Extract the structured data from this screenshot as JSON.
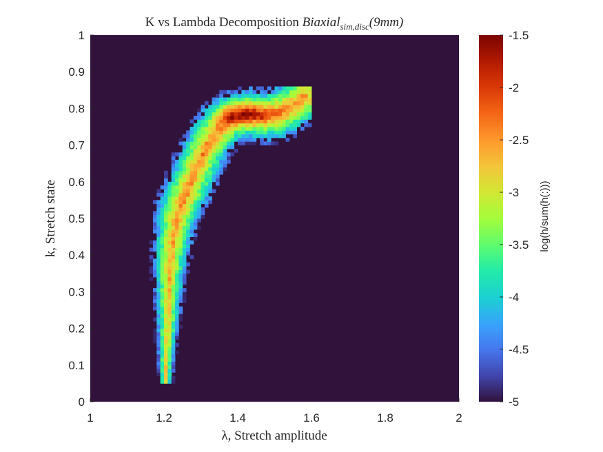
{
  "chart_data": {
    "type": "heatmap",
    "title_parts": {
      "prefix": "K vs Lambda Decomposition ",
      "main": "Biaxial",
      "subscript": "sim,disc",
      "suffix": "(9mm)"
    },
    "xlabel": "λ, Stretch amplitude",
    "ylabel": "k, Stretch state",
    "xlim": [
      1,
      2
    ],
    "ylim": [
      0,
      1
    ],
    "x_ticks": [
      "1",
      "1.2",
      "1.4",
      "1.6",
      "1.8",
      "2"
    ],
    "y_ticks": [
      "0",
      "0.1",
      "0.2",
      "0.3",
      "0.4",
      "0.5",
      "0.6",
      "0.7",
      "0.8",
      "0.9",
      "1"
    ],
    "background_color": "#30123b",
    "colormap": "turbo",
    "colorbar": {
      "label": "log(h/sum(h(:)))",
      "range": [
        -5,
        -1.5
      ],
      "ticks": [
        "-1.5",
        "-2",
        "-2.5",
        "-3",
        "-3.5",
        "-4",
        "-4.5",
        "-5"
      ]
    },
    "band_ridge": [
      {
        "k": 0.05,
        "lambda": 1.2
      },
      {
        "k": 0.1,
        "lambda": 1.2
      },
      {
        "k": 0.2,
        "lambda": 1.205
      },
      {
        "k": 0.3,
        "lambda": 1.208
      },
      {
        "k": 0.4,
        "lambda": 1.215
      },
      {
        "k": 0.5,
        "lambda": 1.23
      },
      {
        "k": 0.55,
        "lambda": 1.25
      },
      {
        "k": 0.6,
        "lambda": 1.27
      },
      {
        "k": 0.65,
        "lambda": 1.29
      },
      {
        "k": 0.7,
        "lambda": 1.315
      },
      {
        "k": 0.74,
        "lambda": 1.345
      },
      {
        "k": 0.77,
        "lambda": 1.38
      },
      {
        "k": 0.78,
        "lambda": 1.42
      },
      {
        "k": 0.775,
        "lambda": 1.46
      },
      {
        "k": 0.78,
        "lambda": 1.5
      },
      {
        "k": 0.8,
        "lambda": 1.54
      },
      {
        "k": 0.825,
        "lambda": 1.575
      }
    ],
    "max_density_near": {
      "lambda": 1.41,
      "k": 0.78,
      "value": -1.6
    }
  }
}
